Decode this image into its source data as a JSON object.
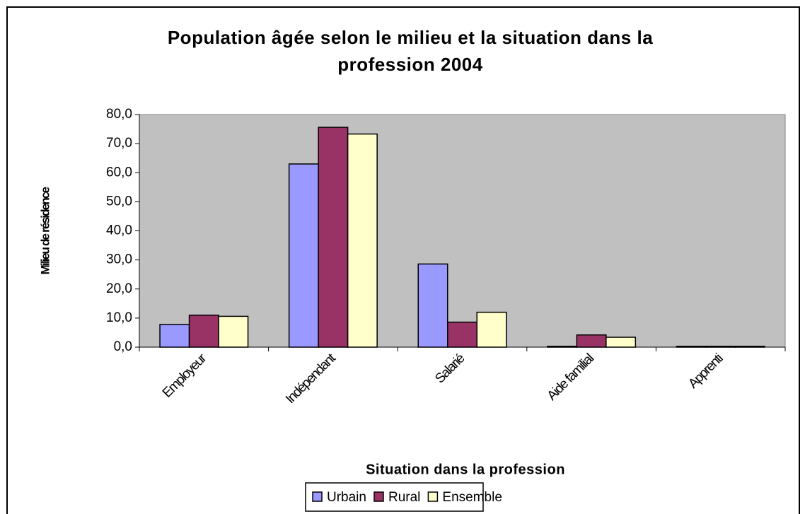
{
  "chart_data": {
    "type": "bar",
    "title": "Population âgée selon le milieu et la situation dans la profession 2004",
    "x_label": "Situation dans la profession",
    "y_label": "Milieu de résidence",
    "categories": [
      "Employeur",
      "Indépendant",
      "Salarié",
      "Aide familial",
      "Apprenti"
    ],
    "series": [
      {
        "name": "Urbain",
        "color": "#9999ff",
        "values": [
          7.8,
          63.0,
          28.6,
          0.3,
          0.3
        ]
      },
      {
        "name": "Rural",
        "color": "#993366",
        "values": [
          11.0,
          75.6,
          8.6,
          4.2,
          0.3
        ]
      },
      {
        "name": "Ensemble",
        "color": "#ffffcc",
        "values": [
          10.6,
          73.3,
          12.0,
          3.4,
          0.3
        ]
      }
    ],
    "ylim": [
      0,
      80
    ],
    "yticks": [
      {
        "value": 0,
        "label": "0,0"
      },
      {
        "value": 10,
        "label": "10,0"
      },
      {
        "value": 20,
        "label": "20,0"
      },
      {
        "value": 30,
        "label": "30,0"
      },
      {
        "value": 40,
        "label": "40,0"
      },
      {
        "value": 50,
        "label": "50,0"
      },
      {
        "value": 60,
        "label": "60,0"
      },
      {
        "value": 70,
        "label": "70,0"
      },
      {
        "value": 80,
        "label": "80,0"
      }
    ],
    "plot_background": "#c0c0c0",
    "legend": "bottom"
  }
}
